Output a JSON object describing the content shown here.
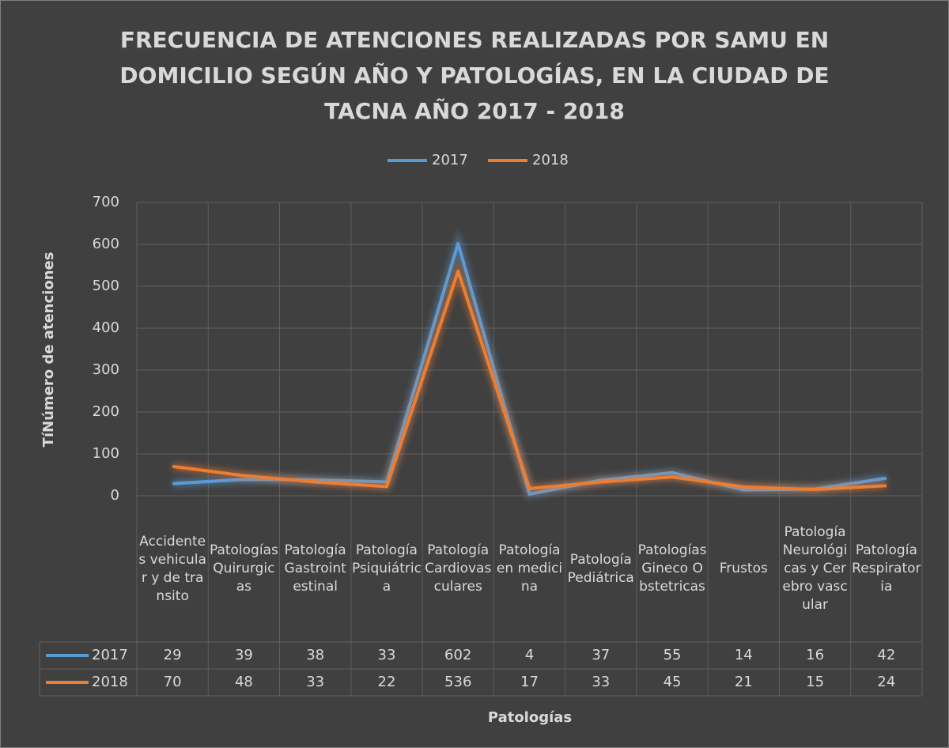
{
  "chart_data": {
    "type": "line",
    "title": "FRECUENCIA DE ATENCIONES REALIZADAS POR SAMU EN\nDOMICILIO SEGÚN AÑO Y PATOLOGÍAS, EN LA CIUDAD DE\nTACNA AÑO 2017 - 2018",
    "xlabel": "Patologías",
    "ylabel": "TíNúmero de atenciones",
    "categories": [
      "Accidentes vehicular y de transito",
      "Patologías Quirurgicas",
      "Patología Gastrointestinal",
      "Patología Psiquiátrica",
      "Patología Cardiovasculares",
      "Patología en medicina",
      "Patología Pediátrica",
      "Patologías Gineco Obstetricas",
      "Frustos",
      "Patología Neurológicas y Cerebro vascular",
      "Patología Respiratoria"
    ],
    "series": [
      {
        "name": "2017",
        "color": "#5b9bd5",
        "values": [
          29,
          39,
          38,
          33,
          602,
          4,
          37,
          55,
          14,
          16,
          42
        ]
      },
      {
        "name": "2018",
        "color": "#ed7d31",
        "values": [
          70,
          48,
          33,
          22,
          536,
          17,
          33,
          45,
          21,
          15,
          24
        ]
      }
    ],
    "ylim": [
      0,
      700
    ],
    "yticks": [
      0,
      100,
      200,
      300,
      400,
      500,
      600,
      700
    ],
    "grid": true,
    "legend": "top"
  }
}
